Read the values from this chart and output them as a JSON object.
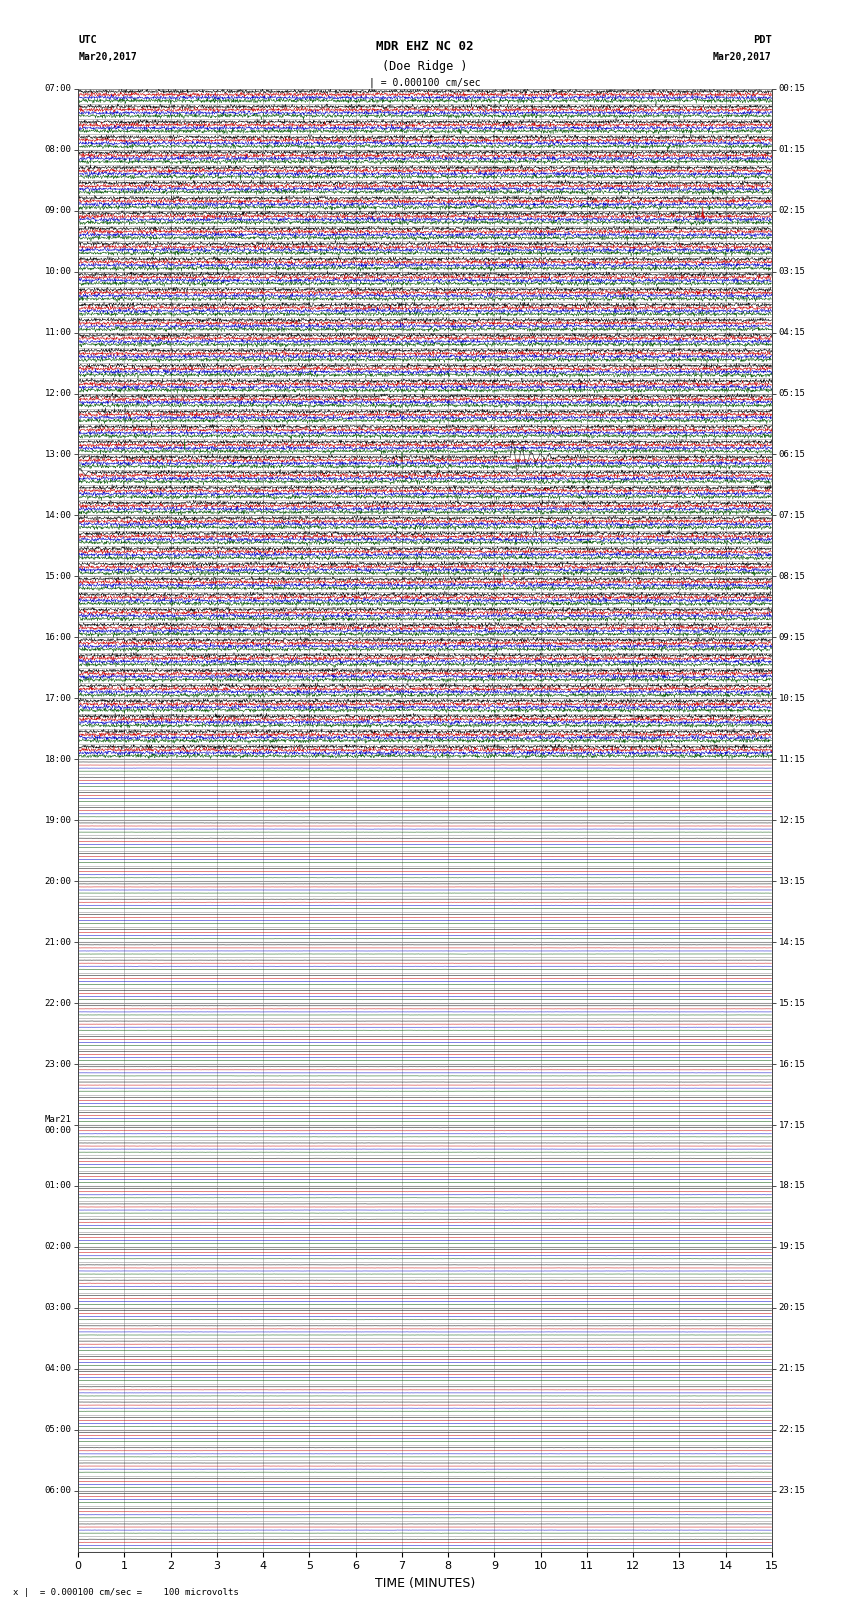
{
  "title_line1": "MDR EHZ NC 02",
  "title_line2": "(Doe Ridge )",
  "scale_text": "| = 0.000100 cm/sec",
  "left_header1": "UTC",
  "left_header2": "Mar20,2017",
  "right_header1": "PDT",
  "right_header2": "Mar20,2017",
  "xlabel": "TIME (MINUTES)",
  "footnote": "= 0.000100 cm/sec =    100 microvolts",
  "bg_color": "#ffffff",
  "grid_color": "#999999",
  "trace_colors": [
    "#000000",
    "#cc0000",
    "#0000cc",
    "#005500"
  ],
  "num_rows": 96,
  "active_rows": 44,
  "figwidth": 8.5,
  "figheight": 16.13,
  "left_tick_labels": [
    "07:00",
    "08:00",
    "09:00",
    "10:00",
    "11:00",
    "12:00",
    "13:00",
    "14:00",
    "15:00",
    "16:00",
    "17:00",
    "18:00",
    "19:00",
    "20:00",
    "21:00",
    "22:00",
    "23:00",
    "Mar21\n00:00",
    "01:00",
    "02:00",
    "03:00",
    "04:00",
    "05:00",
    "06:00"
  ],
  "right_tick_labels": [
    "00:15",
    "01:15",
    "02:15",
    "03:15",
    "04:15",
    "05:15",
    "06:15",
    "07:15",
    "08:15",
    "09:15",
    "10:15",
    "11:15",
    "12:15",
    "13:15",
    "14:15",
    "15:15",
    "16:15",
    "17:15",
    "18:15",
    "19:15",
    "20:15",
    "21:15",
    "22:15",
    "23:15"
  ],
  "eq_row": 24,
  "eq_minute": 9.35,
  "eq_amplitude": 0.38,
  "green_spike_row": 23,
  "green_spike_min1": 2.3,
  "green_spike_min2": 7.0,
  "red_spike_row": 8,
  "red_spike_min": 13.5,
  "red_spike2_row": 32,
  "red_spike2_min": 9.2,
  "noise_active": 0.018,
  "noise_inactive": 0.002
}
